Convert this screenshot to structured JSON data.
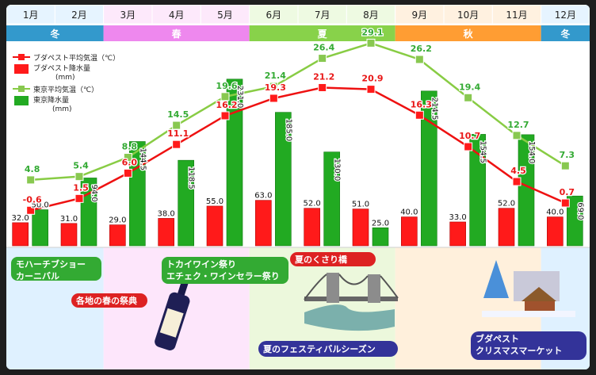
{
  "months": [
    "1月",
    "2月",
    "3月",
    "4月",
    "5月",
    "6月",
    "7月",
    "8月",
    "9月",
    "10月",
    "11月",
    "12月"
  ],
  "seasons": [
    {
      "label": "冬",
      "color": "#3399cc",
      "bg": "#dff1ff",
      "head": "#e6f4ff"
    },
    {
      "label": "春",
      "color": "#ee88ee",
      "bg": "#fde6fb",
      "head": "#fde9fb"
    },
    {
      "label": "夏",
      "color": "#88d24a",
      "bg": "#ecf8dc",
      "head": "#eefae2"
    },
    {
      "label": "秋",
      "color": "#ff9d33",
      "bg": "#fff0dc",
      "head": "#fff1e0"
    },
    {
      "label": "冬",
      "color": "#3399cc",
      "bg": "#dff1ff",
      "head": "#e6f4ff"
    }
  ],
  "legend": {
    "bp_temp": "ブダペスト平均気温（℃）",
    "bp_rain": "ブダペスト降水量",
    "bp_rain_unit": "(mm)",
    "tk_temp": "東京平均気温（℃）",
    "tk_rain": "東京降水量",
    "tk_rain_unit": "(mm)"
  },
  "colors": {
    "budapest": "#ff1a1a",
    "budapest_line": "#ee1111",
    "tokyo": "#22aa22",
    "tokyo_line": "#88cc44",
    "tokyo_marker": "#88c850",
    "event_green": "#33aa33",
    "event_red": "#dd2222",
    "event_blue": "#333399"
  },
  "chart_data": {
    "type": "bar",
    "categories": [
      "1月",
      "2月",
      "3月",
      "4月",
      "5月",
      "6月",
      "7月",
      "8月",
      "9月",
      "10月",
      "11月",
      "12月"
    ],
    "series": [
      {
        "name": "ブダペスト降水量",
        "kind": "bar",
        "unit": "mm",
        "values": [
          32.0,
          31.0,
          29.0,
          38.0,
          55.0,
          63.0,
          52.0,
          51.0,
          40.0,
          33.0,
          52.0,
          40.0
        ],
        "labels": [
          "32.0",
          "31.0",
          "29.0",
          "38.0",
          "55.0",
          "63.0",
          "52.0",
          "51.0",
          "40.0",
          "33.0",
          "52.0",
          "40.0"
        ]
      },
      {
        "name": "東京降水量",
        "kind": "bar",
        "unit": "mm",
        "values": [
          50.0,
          94.0,
          144.5,
          118.5,
          231.0,
          185.0,
          130.0,
          25.0,
          214.5,
          154.5,
          154.0,
          69.0
        ],
        "labels": [
          "50.0",
          "94.0",
          "144.5",
          "118.5",
          "231.0",
          "185.0",
          "130.0",
          "25.0",
          "214.5",
          "154.5",
          "154.0",
          "69.0"
        ]
      },
      {
        "name": "ブダペスト平均気温",
        "kind": "line",
        "unit": "℃",
        "values": [
          -0.6,
          1.5,
          6.0,
          11.1,
          16.2,
          19.3,
          21.2,
          20.9,
          16.3,
          10.7,
          4.5,
          0.7
        ],
        "labels": [
          "-0.6",
          "1.5",
          "6.0",
          "11.1",
          "16.2",
          "19.3",
          "21.2",
          "20.9",
          "16.3",
          "10.7",
          "4.5",
          "0.7"
        ]
      },
      {
        "name": "東京平均気温",
        "kind": "line",
        "unit": "℃",
        "values": [
          4.8,
          5.4,
          8.8,
          14.5,
          19.6,
          21.4,
          26.4,
          29.1,
          26.2,
          19.4,
          12.7,
          7.3
        ],
        "labels": [
          "4.8",
          "5.4",
          "8.8",
          "14.5",
          "19.6",
          "21.4",
          "26.4",
          "29.1",
          "26.2",
          "19.4",
          "12.7",
          "7.3"
        ]
      }
    ],
    "rain_axis_range": [
      0,
      250
    ],
    "temp_axis_range": [
      -6,
      30
    ],
    "grid": false,
    "legend_position": "top-left"
  },
  "events": [
    {
      "text": "モハーチブショー\nカーニバル",
      "style": "green"
    },
    {
      "text": "各地の春の祭典",
      "style": "red"
    },
    {
      "text": "トカイワイン祭り\nエチェク・ワインセラー祭り",
      "style": "green"
    },
    {
      "text": "夏のくさり橋",
      "style": "red"
    },
    {
      "text": "夏のフェスティバルシーズン",
      "style": "blue"
    },
    {
      "text": "ブダペスト\nクリスマスマーケット",
      "style": "blue"
    }
  ]
}
